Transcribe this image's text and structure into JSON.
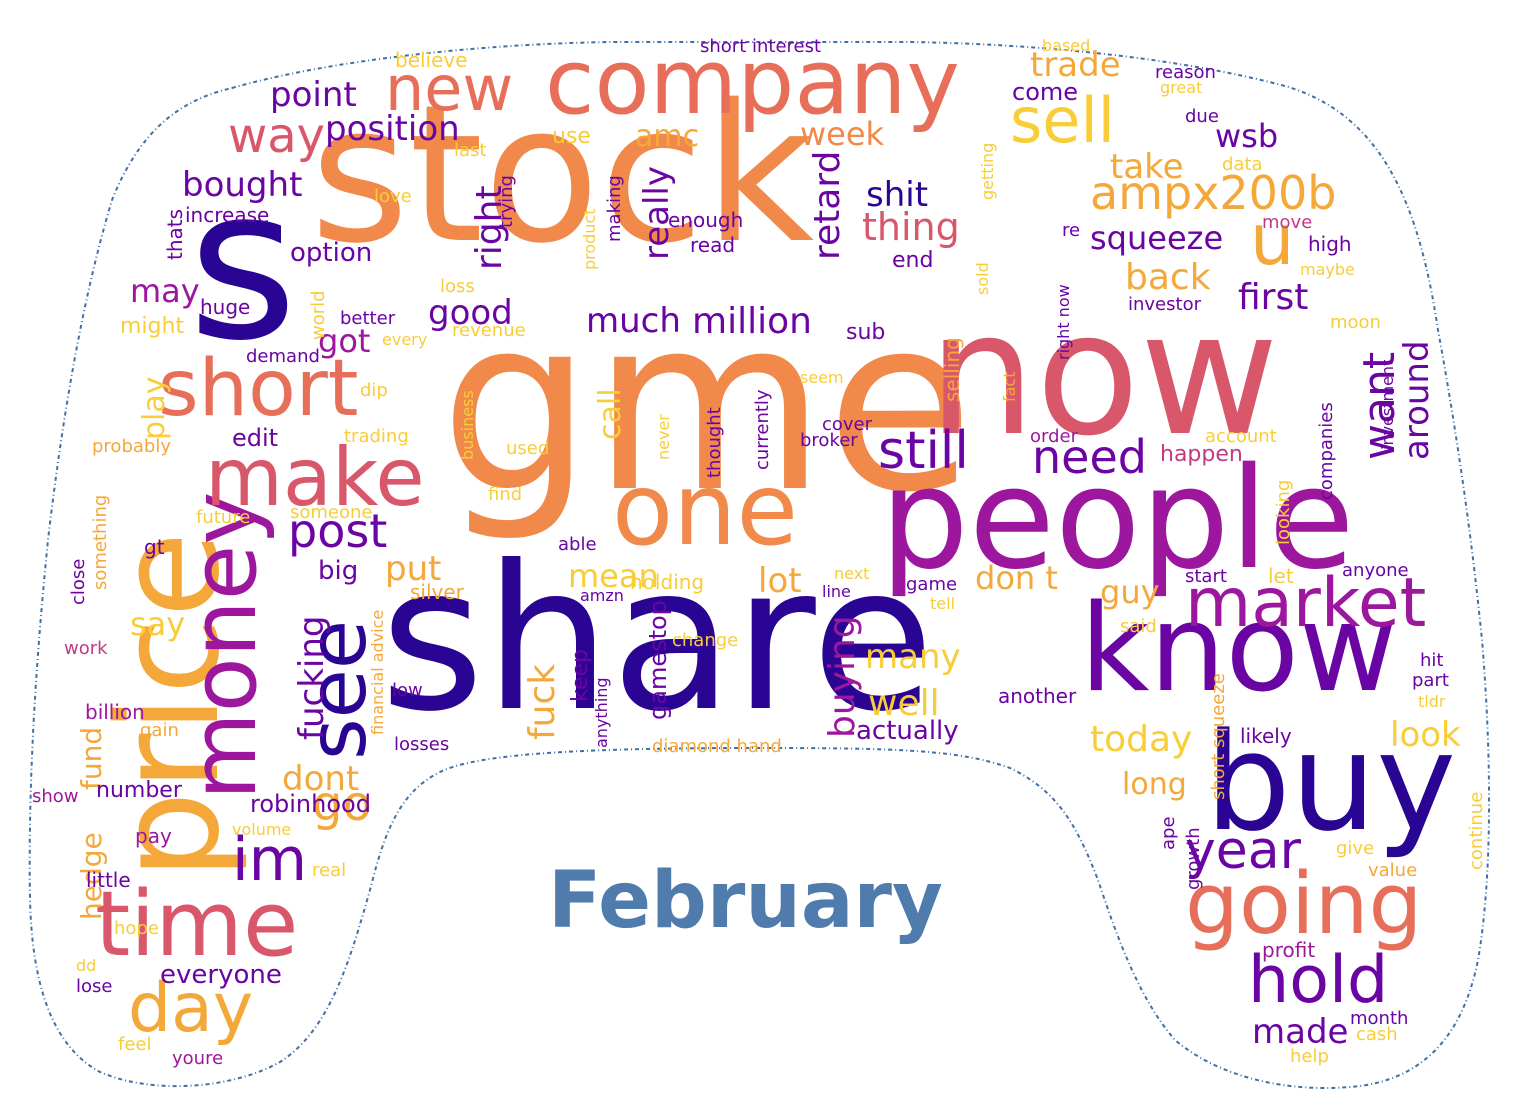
{
  "caption": "February",
  "colors": {
    "c1": "#2a0593",
    "c2": "#6a04a3",
    "c3": "#9c179e",
    "c4": "#c13a82",
    "c5": "#d8576b",
    "c6": "#e76f5a",
    "c7": "#f0894a",
    "c8": "#f4a83a",
    "c9": "#f8cd37",
    "c10": "#f0f921",
    "outline": "#3f6fa8",
    "caption": "#4f7bad"
  },
  "words": [
    "stock",
    "s",
    "gme",
    "now",
    "share",
    "people",
    "know",
    "buy",
    "price",
    "money",
    "company",
    "one",
    "make",
    "short",
    "time",
    "see",
    "going",
    "market",
    "new",
    "sell",
    "hold",
    "day",
    "im",
    "post",
    "way",
    "position",
    "ampx200b",
    "still",
    "point",
    "need",
    "year",
    "go",
    "trade",
    "bought",
    "want",
    "around",
    "squeeze",
    "thing",
    "shit",
    "retard",
    "really",
    "much",
    "million",
    "good",
    "right",
    "fucking",
    "buying",
    "fuck",
    "amc",
    "week",
    "take",
    "wsb",
    "first",
    "back",
    "u",
    "many",
    "well",
    "today",
    "look",
    "dont",
    "robinhood",
    "everyone",
    "hedge",
    "fund",
    "put",
    "mean",
    "lot",
    "don t",
    "guy",
    "long",
    "made",
    "play",
    "say",
    "may",
    "option",
    "got",
    "edit",
    "increase",
    "thats",
    "huge",
    "might",
    "demand",
    "probably",
    "something",
    "billion",
    "gain",
    "number",
    "show",
    "little",
    "pay",
    "work",
    "close",
    "gt",
    "future",
    "someone",
    "big",
    "silver",
    "financial advice",
    "low",
    "losses",
    "keep",
    "anything",
    "gamestop",
    "diamond hand",
    "actually",
    "another",
    "likely",
    "short squeeze",
    "growth",
    "ape",
    "continue",
    "value",
    "give",
    "profit",
    "month",
    "cash",
    "help",
    "lose",
    "feel",
    "youre",
    "dd",
    "hope",
    "real",
    "volume",
    "short interest",
    "believe",
    "based",
    "reason",
    "great",
    "due",
    "data",
    "move",
    "high",
    "maybe",
    "re",
    "investor",
    "moon",
    "investment",
    "companies",
    "account",
    "happen",
    "order",
    "looking",
    "start",
    "let",
    "anyone",
    "hit",
    "part",
    "tldr",
    "come",
    "getting",
    "sold",
    "right now",
    "fact",
    "selling",
    "seem",
    "cover",
    "broker",
    "currently",
    "thought",
    "never",
    "used",
    "find",
    "able",
    "amzn",
    "holding",
    "next",
    "line",
    "game",
    "tell",
    "said",
    "change",
    "call",
    "business",
    "trading",
    "dip",
    "every",
    "better",
    "revenue",
    "loss",
    "world",
    "love",
    "product",
    "making",
    "trying",
    "enough",
    "read",
    "use",
    "last",
    "end",
    "sub"
  ]
}
